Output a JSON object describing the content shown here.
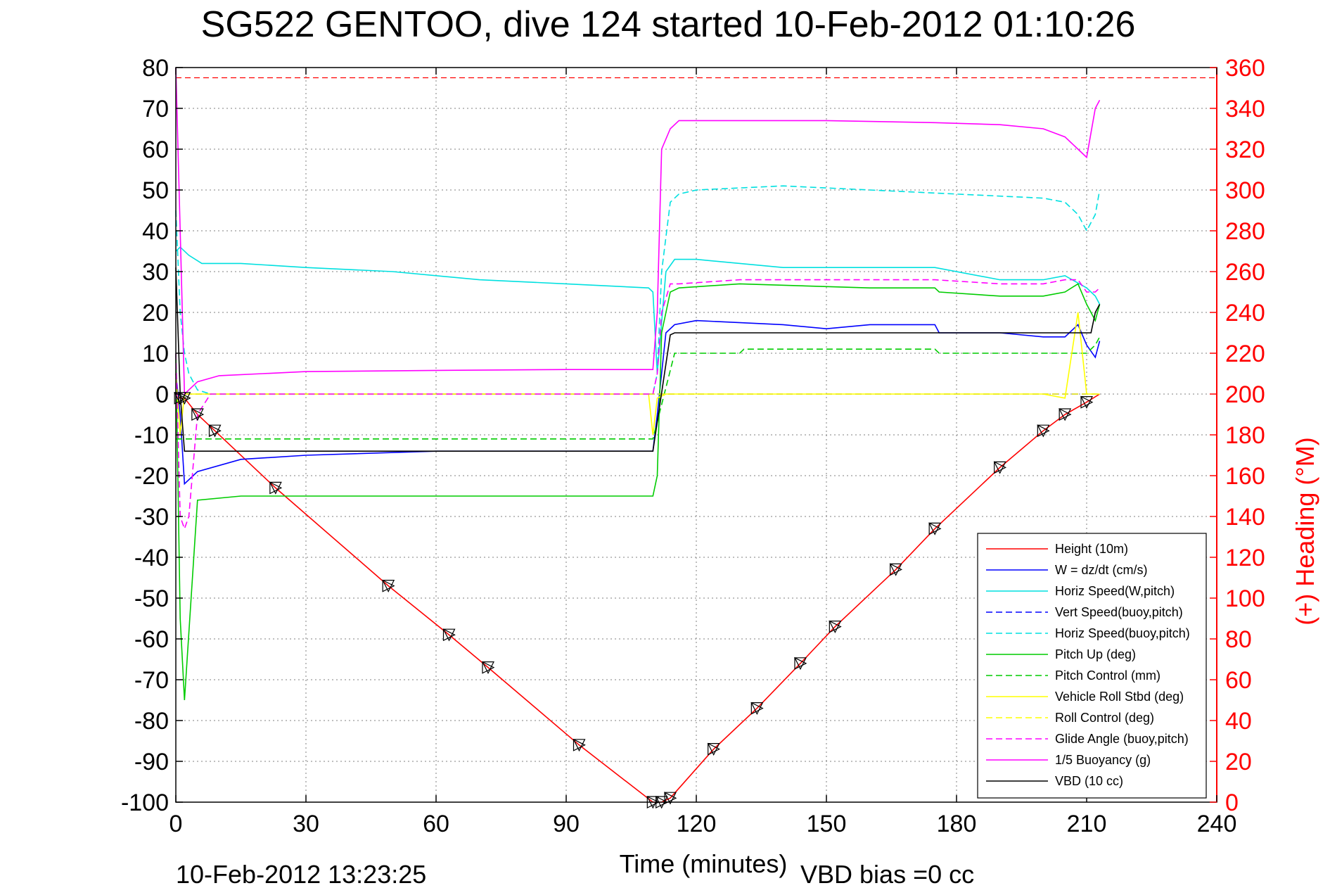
{
  "chart_data": {
    "type": "line",
    "title": "SG522 GENTOO, dive 124 started 10-Feb-2012 01:10:26",
    "xlabel": "Time (minutes)",
    "ylabel": "",
    "ylabel_right": "(+) Heading (°M)",
    "xlim": [
      0,
      240
    ],
    "ylim": [
      -100,
      80
    ],
    "ylim_right": [
      0,
      360
    ],
    "xticks": [
      "0",
      "30",
      "60",
      "90",
      "120",
      "150",
      "180",
      "210",
      "240"
    ],
    "yticks": [
      "80",
      "70",
      "60",
      "50",
      "40",
      "30",
      "20",
      "10",
      "0",
      "-10",
      "-20",
      "-30",
      "-40",
      "-50",
      "-60",
      "-70",
      "-80",
      "-90",
      "-100"
    ],
    "yticks_right": [
      "360",
      "340",
      "320",
      "300",
      "280",
      "260",
      "240",
      "220",
      "200",
      "180",
      "160",
      "140",
      "120",
      "100",
      "80",
      "60",
      "40",
      "20",
      "0"
    ],
    "grid": true,
    "legend_position": "bottom-right",
    "footer_left": "10-Feb-2012 13:23:25",
    "footer_right": "VBD bias =0 cc",
    "series": [
      {
        "name": "Height (10m)",
        "color": "#ff0000",
        "style": "solid",
        "x": [
          0,
          1,
          2,
          5,
          9,
          23,
          49,
          63,
          72,
          93,
          110,
          112,
          114,
          124,
          134,
          144,
          152,
          166,
          175,
          190,
          200,
          205,
          210,
          213
        ],
        "y": [
          0,
          -1,
          -1,
          -5,
          -9,
          -23,
          -47,
          -59,
          -67,
          -86,
          -100,
          -100,
          -99,
          -87,
          -77,
          -66,
          -57,
          -43,
          -33,
          -18,
          -9,
          -5,
          -2,
          0
        ]
      },
      {
        "name": "W = dz/dt (cm/s)",
        "color": "#0000ff",
        "style": "solid",
        "x": [
          0,
          1,
          2,
          5,
          15,
          30,
          60,
          90,
          109,
          110,
          111,
          113,
          115,
          120,
          140,
          150,
          160,
          175,
          176,
          190,
          200,
          205,
          208,
          210,
          212,
          213
        ],
        "y": [
          5,
          -5,
          -22,
          -19,
          -16,
          -15,
          -14,
          -14,
          -14,
          -14,
          -5,
          15,
          17,
          18,
          17,
          16,
          17,
          17,
          15,
          15,
          14,
          14,
          17,
          12,
          9,
          13
        ]
      },
      {
        "name": "Horiz Speed(W,pitch)",
        "color": "#00e0e0",
        "style": "solid",
        "x": [
          0,
          1,
          3,
          6,
          15,
          30,
          50,
          70,
          90,
          109,
          110,
          111,
          113,
          115,
          120,
          140,
          160,
          175,
          190,
          200,
          205,
          210,
          212,
          213
        ],
        "y": [
          35,
          36,
          34,
          32,
          32,
          31,
          30,
          28,
          27,
          26,
          25,
          5,
          30,
          33,
          33,
          31,
          31,
          31,
          28,
          28,
          29,
          26,
          24,
          22
        ]
      },
      {
        "name": "Vert Speed(buoy,pitch)",
        "color": "#0000ff",
        "style": "dashed",
        "x": [
          0,
          2,
          213
        ],
        "y": [
          0,
          0,
          0
        ]
      },
      {
        "name": "Horiz Speed(buoy,pitch)",
        "color": "#00e0e0",
        "style": "dashed",
        "x": [
          0,
          1,
          2,
          3,
          5,
          8,
          15,
          30,
          60,
          90,
          109,
          110,
          111,
          112,
          114,
          116,
          120,
          140,
          160,
          180,
          200,
          205,
          208,
          210,
          212,
          213
        ],
        "y": [
          45,
          20,
          10,
          5,
          1,
          0,
          0,
          0,
          0,
          0,
          0,
          0,
          5,
          30,
          47,
          49,
          50,
          51,
          50,
          49,
          48,
          47,
          44,
          40,
          44,
          50
        ]
      },
      {
        "name": "Pitch Up (deg)",
        "color": "#00cc00",
        "style": "solid",
        "x": [
          0,
          1,
          2,
          5,
          15,
          30,
          60,
          90,
          109,
          110,
          111,
          112,
          114,
          116,
          130,
          160,
          175,
          176,
          190,
          200,
          205,
          208,
          210,
          212,
          213
        ],
        "y": [
          10,
          -55,
          -75,
          -26,
          -25,
          -25,
          -25,
          -25,
          -25,
          -25,
          -20,
          15,
          25,
          26,
          27,
          26,
          26,
          25,
          24,
          24,
          25,
          27,
          22,
          18,
          22
        ]
      },
      {
        "name": "Pitch Control (mm)",
        "color": "#00cc00",
        "style": "dashed",
        "x": [
          0,
          2,
          109,
          110,
          115,
          130,
          131,
          150,
          175,
          176,
          210,
          212,
          213
        ],
        "y": [
          -11,
          -11,
          -11,
          -11,
          10,
          10,
          11,
          11,
          11,
          10,
          10,
          12,
          14
        ]
      },
      {
        "name": "Vehicle Roll Stbd (deg)",
        "color": "#ffff00",
        "style": "solid",
        "x": [
          0,
          1,
          2,
          5,
          30,
          60,
          90,
          109,
          110,
          111,
          113,
          130,
          160,
          190,
          200,
          205,
          208,
          210,
          213
        ],
        "y": [
          5,
          -10,
          0,
          0,
          0,
          0,
          0,
          0,
          -10,
          -1,
          0,
          0,
          0,
          0,
          0,
          -1,
          20,
          0,
          0
        ]
      },
      {
        "name": "Roll Control (deg)",
        "color": "#ffff00",
        "style": "dashed",
        "x": [
          0,
          213
        ],
        "y": [
          0,
          0
        ]
      },
      {
        "name": "Glide Angle (buoy,pitch)",
        "color": "#ff00ff",
        "style": "dashed",
        "x": [
          0,
          1,
          2,
          3,
          5,
          8,
          15,
          30,
          60,
          90,
          109,
          110,
          111,
          112,
          114,
          116,
          130,
          150,
          175,
          190,
          200,
          205,
          208,
          210,
          212,
          213
        ],
        "y": [
          10,
          -30,
          -33,
          -30,
          -5,
          0,
          0,
          0,
          0,
          0,
          0,
          0,
          5,
          20,
          27,
          27,
          28,
          28,
          28,
          27,
          27,
          28,
          28,
          25,
          25,
          26
        ]
      },
      {
        "name": "1/5 Buoyancy (g)",
        "color": "#ff00ff",
        "style": "solid",
        "x": [
          0,
          1,
          2,
          5,
          10,
          20,
          30,
          60,
          90,
          109,
          110,
          111,
          112,
          114,
          116,
          130,
          150,
          175,
          190,
          200,
          205,
          208,
          210,
          212,
          213
        ],
        "y": [
          80,
          40,
          0,
          3,
          4.5,
          5,
          5.5,
          5.8,
          6,
          6,
          6,
          20,
          60,
          65,
          67,
          67,
          67,
          66.5,
          66,
          65,
          63,
          60,
          58,
          70,
          72
        ]
      },
      {
        "name": "VBD (10 cc)",
        "color": "#000000",
        "style": "solid",
        "x": [
          0,
          1,
          2,
          109,
          110,
          114,
          115,
          210,
          211,
          212,
          213
        ],
        "y": [
          31,
          0,
          -14,
          -14,
          -14,
          14.5,
          15,
          15,
          15,
          20,
          22
        ]
      }
    ],
    "heading_series": {
      "color": "#ff0000",
      "marker": "+",
      "axis": "right",
      "reference_line": 355,
      "note": "heading values plotted as + markers on right axis"
    }
  }
}
